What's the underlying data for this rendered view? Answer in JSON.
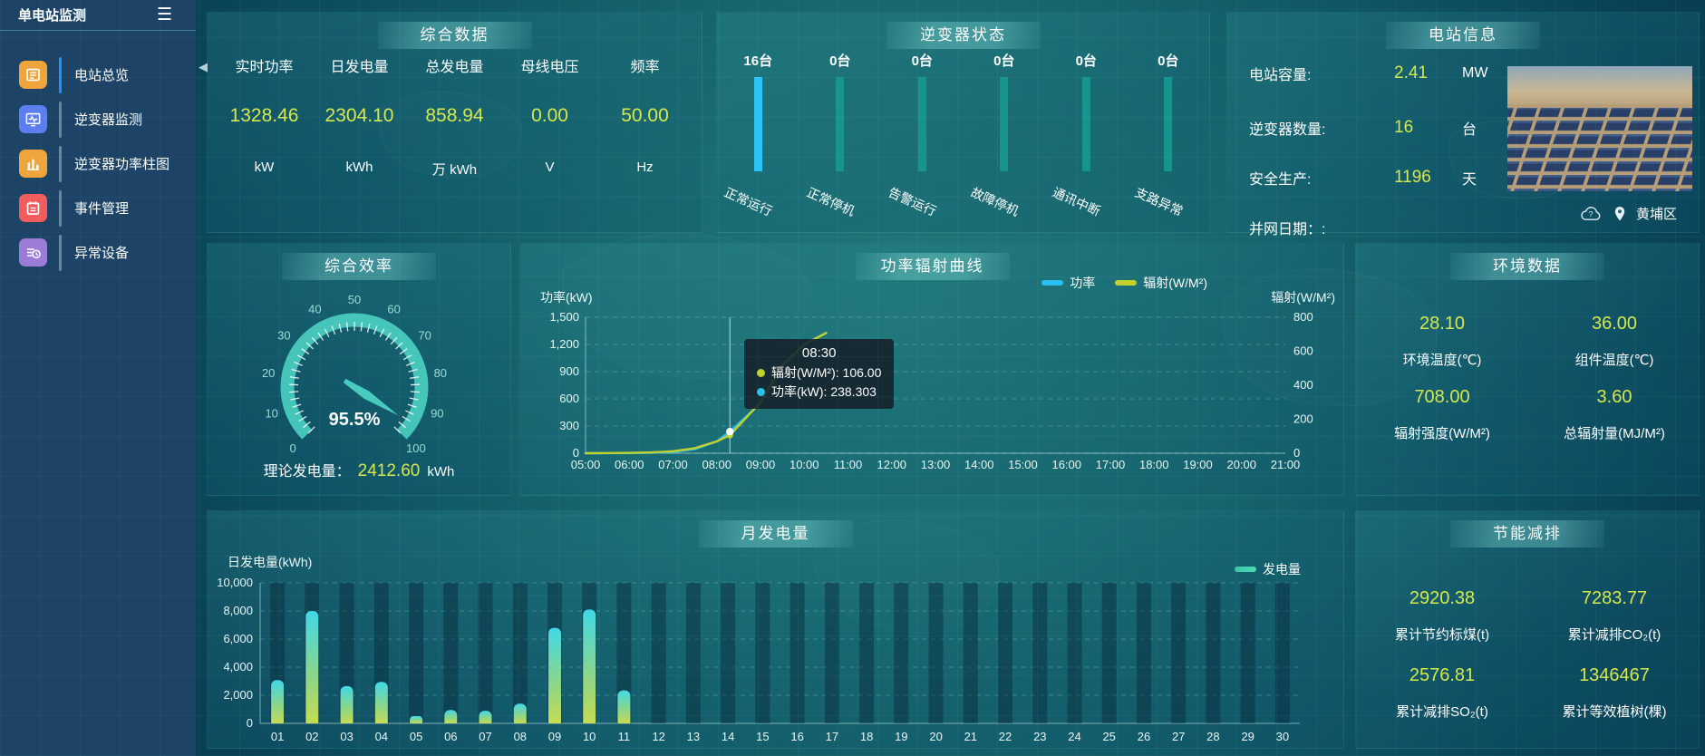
{
  "app": {
    "title": "单电站监测"
  },
  "sidebar": {
    "items": [
      {
        "key": "station-overview",
        "label": "电站总览",
        "icon": "overview-icon",
        "color": "#f0a43c",
        "active": true
      },
      {
        "key": "inverter-monitor",
        "label": "逆变器监测",
        "icon": "inverter-monitor-icon",
        "color": "#5b7ef0",
        "active": false
      },
      {
        "key": "inverter-power-bars",
        "label": "逆变器功率柱图",
        "icon": "power-bars-icon",
        "color": "#f0a43c",
        "active": false
      },
      {
        "key": "event-management",
        "label": "事件管理",
        "icon": "event-icon",
        "color": "#f25c5c",
        "active": false
      },
      {
        "key": "abnormal-devices",
        "label": "异常设备",
        "icon": "abnormal-device-icon",
        "color": "#9d7bd8",
        "active": false
      }
    ]
  },
  "summary": {
    "title": "综合数据",
    "stats": [
      {
        "label": "实时功率",
        "value": "1328.46",
        "unit": "kW"
      },
      {
        "label": "日发电量",
        "value": "2304.10",
        "unit": "kWh"
      },
      {
        "label": "总发电量",
        "value": "858.94",
        "unit": "万 kWh"
      },
      {
        "label": "母线电压",
        "value": "0.00",
        "unit": "V"
      },
      {
        "label": "频率",
        "value": "50.00",
        "unit": "Hz"
      }
    ]
  },
  "inverter_status": {
    "title": "逆变器状态",
    "highlight_color": "#29c4f5",
    "normal_color": "#17948e",
    "bars": [
      {
        "count": "16台",
        "label": "正常运行",
        "highlight": true
      },
      {
        "count": "0台",
        "label": "正常停机",
        "highlight": false
      },
      {
        "count": "0台",
        "label": "告警运行",
        "highlight": false
      },
      {
        "count": "0台",
        "label": "故障停机",
        "highlight": false
      },
      {
        "count": "0台",
        "label": "通讯中断",
        "highlight": false
      },
      {
        "count": "0台",
        "label": "支路异常",
        "highlight": false
      }
    ]
  },
  "station_info": {
    "title": "电站信息",
    "rows": [
      {
        "label": "电站容量:",
        "value": "2.41",
        "unit": "MW"
      },
      {
        "label": "逆变器数量:",
        "value": "16",
        "unit": "台"
      },
      {
        "label": "安全生产:",
        "value": "1196",
        "unit": "天"
      },
      {
        "label": "并网日期：:",
        "value": "",
        "unit": ""
      }
    ],
    "location": "黄埔区"
  },
  "efficiency": {
    "title": "综合效率",
    "theory_label": "理论发电量：",
    "theory_value": "2412.60",
    "theory_unit": "kWh"
  },
  "environment": {
    "title": "环境数据",
    "cells": [
      {
        "value": "28.10",
        "label": "环境温度(℃)"
      },
      {
        "value": "36.00",
        "label": "组件温度(℃)"
      },
      {
        "value": "708.00",
        "label": "辐射强度(W/M²)"
      },
      {
        "value": "3.60",
        "label": "总辐射量(MJ/M²)"
      }
    ]
  },
  "energy_saving": {
    "title": "节能减排",
    "cells": [
      {
        "value": "2920.38",
        "label": "累计节约标煤(t)"
      },
      {
        "value": "7283.77",
        "label": "累计减排CO₂(t)"
      },
      {
        "value": "2576.81",
        "label": "累计减排SO₂(t)"
      },
      {
        "value": "1346467",
        "label": "累计等效植树(棵)"
      }
    ]
  },
  "chart_data": [
    {
      "id": "efficiency-gauge",
      "type": "gauge",
      "title": "综合效率",
      "min": 0,
      "max": 100,
      "value": 95.5,
      "value_label": "95.5%",
      "major_ticks": [
        0,
        10,
        20,
        30,
        40,
        50,
        60,
        70,
        80,
        90,
        100
      ],
      "color": "#49cabe"
    },
    {
      "id": "power-radiation",
      "type": "line",
      "title": "功率辐射曲线",
      "ylabel": "功率(kW)",
      "ylabel_right": "辐射(W/M²)",
      "yticks": [
        "0",
        "300",
        "600",
        "900",
        "1,200",
        "1,500"
      ],
      "ylim": [
        0,
        1500
      ],
      "yticks_right": [
        "0",
        "200",
        "400",
        "600",
        "800"
      ],
      "ylim_right": [
        0,
        800
      ],
      "xlim": [
        5,
        21
      ],
      "xtick_labels": [
        "05:00",
        "06:00",
        "07:00",
        "08:00",
        "09:00",
        "10:00",
        "11:00",
        "12:00",
        "13:00",
        "14:00",
        "15:00",
        "16:00",
        "17:00",
        "18:00",
        "19:00",
        "20:00",
        "21:00"
      ],
      "grid": true,
      "legend_position": "top-right",
      "legend": [
        {
          "name": "功率",
          "color": "#29c0f0"
        },
        {
          "name": "辐射(W/M²)",
          "color": "#c3d22b"
        }
      ],
      "x": [
        5,
        5.5,
        6,
        6.5,
        7,
        7.5,
        8,
        8.3,
        9,
        9.5,
        10,
        10.5
      ],
      "series": [
        {
          "name": "功率",
          "yaxis": "left",
          "color": "#29c0f0",
          "values": [
            0,
            1,
            2,
            5,
            15,
            45,
            130,
            238.303,
            550,
            950,
            1200,
            1328.46
          ]
        },
        {
          "name": "辐射(W/M²)",
          "yaxis": "right",
          "color": "#c3d22b",
          "values": [
            0,
            1,
            2,
            5,
            12,
            30,
            70,
            106,
            300,
            520,
            640,
            708
          ]
        }
      ],
      "tooltip": {
        "x": 8.3,
        "title": "08:30",
        "items": [
          {
            "color": "#c3d22b",
            "text": "辐射(W/M²): 106.00"
          },
          {
            "color": "#29c0f0",
            "text": "功率(kW): 238.303"
          }
        ]
      }
    },
    {
      "id": "monthly-generation",
      "type": "bar",
      "title": "月发电量",
      "ylabel": "日发电量(kWh)",
      "yticks": [
        "0",
        "2,000",
        "4,000",
        "6,000",
        "8,000",
        "10,000"
      ],
      "ylim": [
        0,
        10000
      ],
      "grid": true,
      "legend_position": "top-right",
      "legend": [
        {
          "name": "发电量",
          "color": "#49d8a8"
        }
      ],
      "categories": [
        "01",
        "02",
        "03",
        "04",
        "05",
        "06",
        "07",
        "08",
        "09",
        "10",
        "11",
        "12",
        "13",
        "14",
        "15",
        "16",
        "17",
        "18",
        "19",
        "20",
        "21",
        "22",
        "23",
        "24",
        "25",
        "26",
        "27",
        "28",
        "29",
        "30"
      ],
      "values": [
        3080,
        8000,
        2650,
        2950,
        520,
        950,
        900,
        1400,
        6800,
        8100,
        2350,
        0,
        0,
        0,
        0,
        0,
        0,
        0,
        0,
        0,
        0,
        0,
        0,
        0,
        0,
        0,
        0,
        0,
        0,
        0
      ]
    }
  ]
}
